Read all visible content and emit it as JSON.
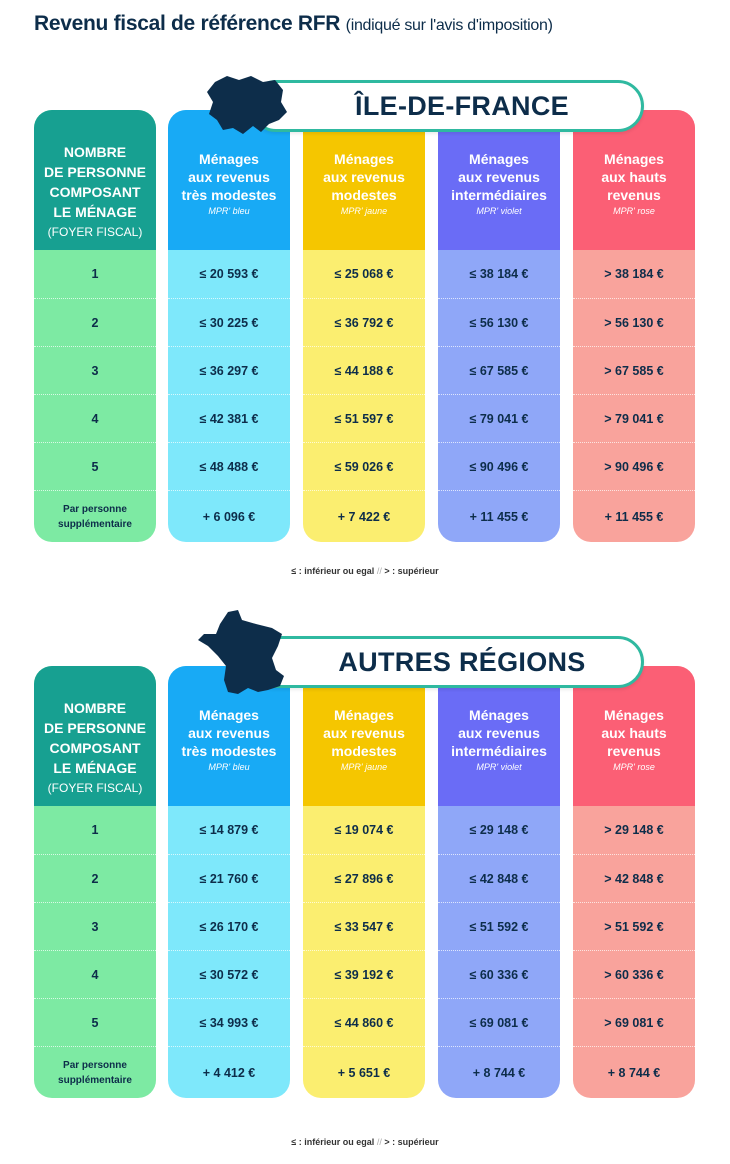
{
  "title": {
    "main": "Revenu fiscal de référence RFR",
    "sub": "(indiqué sur l'avis d'imposition)"
  },
  "colors": {
    "text": "#0d2d4a",
    "banner_border": "#2fb9a0",
    "headers": [
      "#17a091",
      "#18aaf5",
      "#f5c600",
      "#6a6cf6",
      "#fb5f75"
    ],
    "bodies": [
      "#7deaa3",
      "#7ee8fb",
      "#fbee70",
      "#8fa7f8",
      "#f9a39c"
    ]
  },
  "columns": {
    "first": {
      "lines": [
        "NOMBRE",
        "DE PERSONNE",
        "COMPOSANT",
        "LE MÉNAGE"
      ],
      "sub": "(FOYER FISCAL)"
    },
    "categories": [
      {
        "lines": [
          "Ménages",
          "aux revenus",
          "très modestes"
        ],
        "mpr": "MPR' bleu"
      },
      {
        "lines": [
          "Ménages",
          "aux revenus",
          "modestes"
        ],
        "mpr": "MPR' jaune"
      },
      {
        "lines": [
          "Ménages",
          "aux revenus",
          "intermédiaires"
        ],
        "mpr": "MPR' violet"
      },
      {
        "lines": [
          "Ménages",
          "aux hauts",
          "revenus"
        ],
        "mpr": "MPR' rose"
      }
    ],
    "row_labels": [
      "1",
      "2",
      "3",
      "4",
      "5"
    ],
    "extra_label": [
      "Par personne",
      "supplémentaire"
    ]
  },
  "sections": [
    {
      "region": "ÎLE-DE-FRANCE",
      "map_icon": "ile-de-france-map-icon",
      "values": [
        [
          "≤ 20 593 €",
          "≤ 30 225 €",
          "≤ 36 297 €",
          "≤ 42 381 €",
          "≤ 48 488 €",
          "+ 6 096 €"
        ],
        [
          "≤ 25 068 €",
          "≤ 36 792 €",
          "≤ 44 188 €",
          "≤ 51 597 €",
          "≤ 59 026 €",
          "+ 7 422 €"
        ],
        [
          "≤ 38 184 €",
          "≤ 56 130 €",
          "≤ 67 585 €",
          "≤ 79 041 €",
          "≤ 90 496 €",
          "+ 11 455 €"
        ],
        [
          "> 38 184 €",
          "> 56 130 €",
          "> 67 585 €",
          "> 79 041 €",
          "> 90 496 €",
          "+ 11 455 €"
        ]
      ],
      "note": {
        "a": "≤ : inférieur ou egal",
        "sep": "//",
        "b": "> : supérieur"
      }
    },
    {
      "region": "AUTRES RÉGIONS",
      "map_icon": "france-map-icon",
      "values": [
        [
          "≤ 14 879 €",
          "≤ 21 760 €",
          "≤ 26 170 €",
          "≤ 30 572 €",
          "≤ 34 993 €",
          "+ 4 412 €"
        ],
        [
          "≤ 19 074 €",
          "≤ 27 896 €",
          "≤ 33 547 €",
          "≤ 39 192 €",
          "≤ 44 860 €",
          "+ 5 651 €"
        ],
        [
          "≤ 29 148 €",
          "≤ 42 848 €",
          "≤ 51 592 €",
          "≤ 60 336 €",
          "≤ 69 081 €",
          "+ 8 744 €"
        ],
        [
          "> 29 148 €",
          "> 42 848 €",
          "> 51 592 €",
          "> 60 336 €",
          "> 69 081 €",
          "+ 8 744 €"
        ]
      ],
      "note": {
        "a": "≤ : inférieur ou egal",
        "sep": "//",
        "b": "> : supérieur"
      }
    }
  ]
}
